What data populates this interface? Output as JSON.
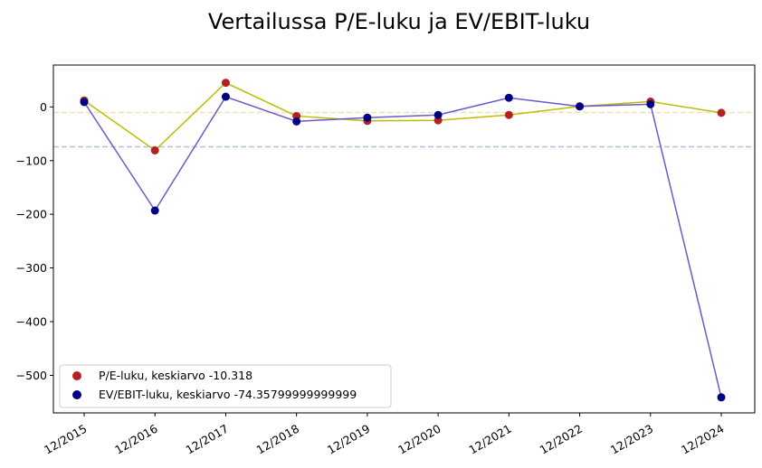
{
  "chart_data": {
    "type": "line",
    "title": "Vertailussa P/E-luku ja EV/EBIT-luku",
    "xlabel": "",
    "ylabel": "",
    "categories": [
      "12/2015",
      "12/2016",
      "12/2017",
      "12/2018",
      "12/2019",
      "12/2020",
      "12/2021",
      "12/2022",
      "12/2023",
      "12/2024"
    ],
    "ylim": [
      -570,
      78
    ],
    "yticks": [
      0,
      -100,
      -200,
      -300,
      -400,
      -500
    ],
    "grid": false,
    "legend_position": "lower-left",
    "series": [
      {
        "name": "P/E-luku, keskiarvo -10.318",
        "values": [
          12,
          -81,
          45,
          -17,
          -26,
          -25,
          -15,
          1,
          10,
          -11
        ],
        "mean": -10.318,
        "marker_color": "#b22222",
        "line_color": "#bdbd00",
        "mean_line_color": "#f5deb3"
      },
      {
        "name": "EV/EBIT-luku, keskiarvo -74.35799999999999",
        "values": [
          9,
          -193,
          19,
          -27,
          -20,
          -15,
          17,
          1,
          5,
          -541
        ],
        "mean": -74.358,
        "marker_color": "#000080",
        "line_color": "#6a5acd",
        "mean_line_color": "#b0c4de"
      }
    ]
  }
}
